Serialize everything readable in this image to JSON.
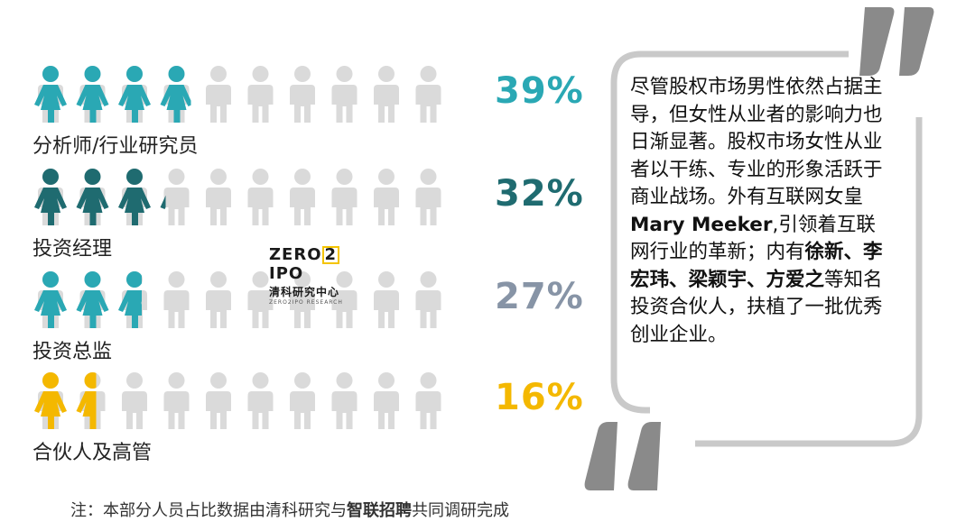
{
  "chart_data": {
    "type": "pictogram",
    "icons_per_row": 10,
    "categories": [
      "分析师/行业研究员",
      "投资经理",
      "投资总监",
      "合伙人及高管"
    ],
    "values": [
      39,
      32,
      27,
      16
    ],
    "labels": [
      "39%",
      "32%",
      "27%",
      "16%"
    ],
    "colors": [
      "#2aa8b4",
      "#1f6b70",
      "#2aa8b4",
      "#f4b800"
    ],
    "label_colors": [
      "#2aa8b4",
      "#1f6b70",
      "#8794a6",
      "#f4b800"
    ],
    "empty_color": "#dadada"
  },
  "logo": {
    "line1_a": "ZERO",
    "line1_b": "2",
    "line1_c": "IPO",
    "line2": "清科研究中心",
    "line3": "ZERO2IPO RESEARCH"
  },
  "quote": {
    "p1": "尽管股权市场男性依然占据主导，但女性从业者的影响力也日渐显著。股权市场女性从业者以干练、专业的形象活跃于商业战场。外有互联网女皇",
    "name1": "Mary Meeker",
    "p2": ",引领着互联网行业的革新；内有",
    "names": "徐新、李宏玮、梁颖宇、方爱之",
    "p3": "等知名投资合伙人，扶植了一批优秀创业企业。"
  },
  "note": {
    "prefix": "注：本部分人员占比数据由清科研究与",
    "brand": "智联招聘",
    "suffix": "共同调研完成"
  }
}
